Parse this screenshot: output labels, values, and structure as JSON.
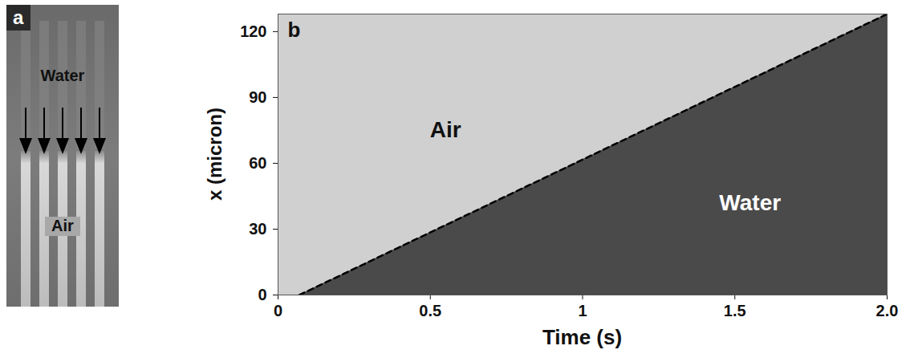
{
  "panel_a": {
    "panel_label": "a",
    "texts": [
      "Water",
      "Air"
    ]
  },
  "chart_data": {
    "panel_label": "b",
    "type": "line",
    "line_style": "dashed",
    "color": "#000000",
    "x_label": "Time (s)",
    "y_label": "x (micron)",
    "x": [
      0.07,
      2.0
    ],
    "values": [
      0,
      128
    ],
    "xlim": [
      0,
      2.0
    ],
    "ylim": [
      0,
      128
    ],
    "xticks": [
      0,
      0.5,
      1,
      1.5,
      {
        "value": 2,
        "label": "2.0"
      }
    ],
    "yticks": [
      0,
      30,
      60,
      90,
      120
    ],
    "regions": [
      {
        "text": "Air",
        "color": "#d0d0d0",
        "x": 0.55,
        "y": 75
      },
      {
        "text": "Water",
        "color": "#4a4a4a",
        "x": 1.55,
        "y": 42
      }
    ]
  }
}
